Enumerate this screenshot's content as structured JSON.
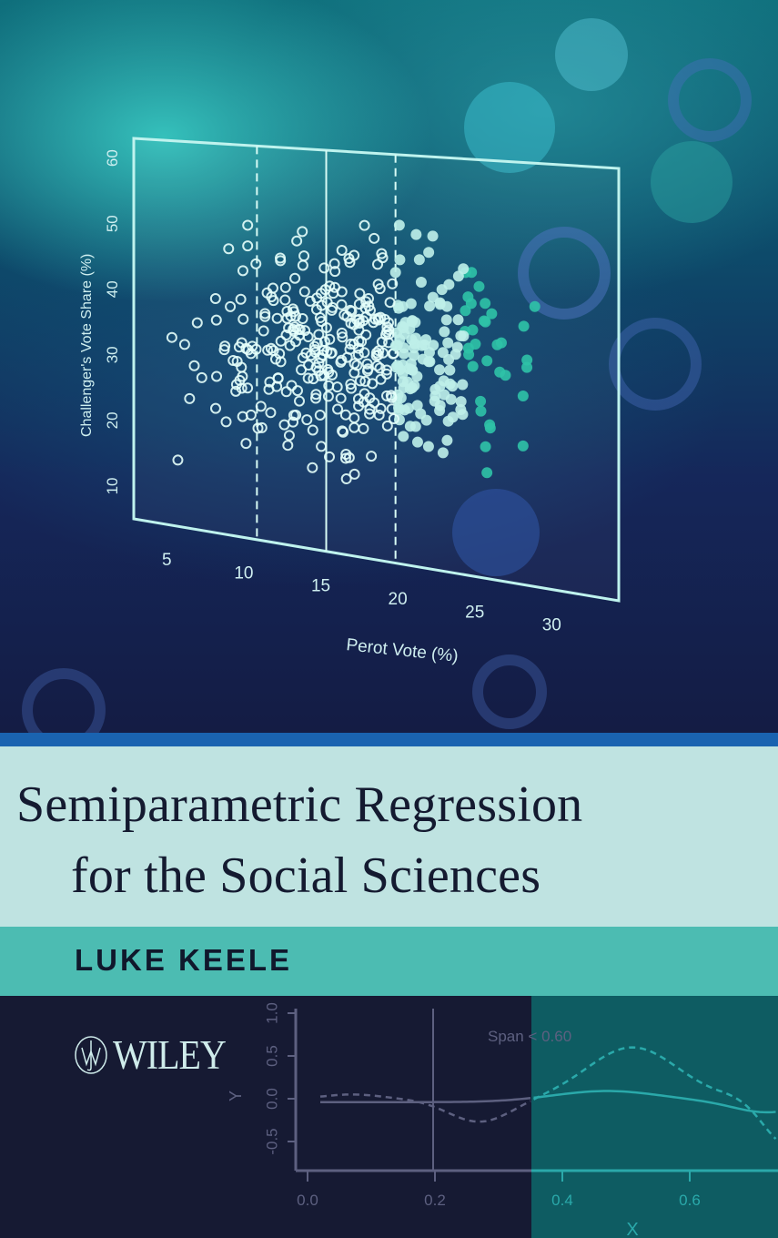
{
  "cover": {
    "title_line1": "Semiparametric Regression",
    "title_line2": "for the Social Sciences",
    "author": "LUKE KEELE",
    "publisher": "WILEY",
    "publisher_logo_letters": "JW"
  },
  "scatter_figure": {
    "xlabel": "Perot Vote (%)",
    "ylabel": "Challenger's Vote Share (%)",
    "x_ticks": [
      "5",
      "10",
      "15",
      "20",
      "25",
      "30"
    ],
    "y_ticks": [
      "10",
      "20",
      "30",
      "40",
      "50",
      "60"
    ]
  },
  "smooth_figure": {
    "annotation": "Span < 0.60",
    "xlabel": "X",
    "ylabel": "Y",
    "x_ticks": [
      "0.0",
      "0.2",
      "0.4",
      "0.6"
    ],
    "y_ticks": [
      "-0.5",
      "0.0",
      "0.5",
      "1.0"
    ]
  },
  "colors": {
    "title_band": "#bfe3e1",
    "author_band": "#4cbcb2",
    "stripe": "#1a63b0",
    "bottom_dark": "#161a33",
    "bottom_teal": "#0e5c62"
  }
}
